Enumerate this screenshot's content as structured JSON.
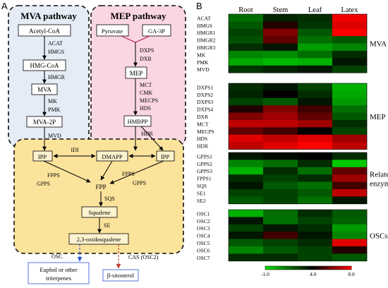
{
  "panels": {
    "a": "A",
    "b": "B"
  },
  "pathway": {
    "mva_title": "MVA pathway",
    "mep_title": "MEP pathway",
    "nodes": {
      "acetyl_coa": "Acetyl-CoA",
      "hmg_coa": "HMG-CoA",
      "mva": "MVA",
      "mva_2p": "MVA-2P",
      "pyruvate": "Pyruvate",
      "ga3p": "GA-3P",
      "mep": "MEP",
      "hmbpp": "HMBPP",
      "ipp_left": "IPP",
      "dmapp": "DMAPP",
      "ipp_right": "IPP",
      "fpp": "FPP",
      "squalene": "Squalene",
      "oxidosqualene": "2,3-oxidosqualene",
      "euphol": "Euphol or other triterpenes",
      "euphol_line1": "Euphol or other",
      "euphol_line2": "triterpenes",
      "sitosterol": "β-sitosterol"
    },
    "enzymes": {
      "acat": "ACAT",
      "hmgs": "HMGS",
      "hmgr": "HMGR",
      "mk": "MK",
      "pmk": "PMK",
      "mvd": "MVD",
      "dxps": "DXPS",
      "dxr": "DXR",
      "mct": "MCT",
      "cmk": "CMK",
      "mecps": "MECPS",
      "hds": "HDS",
      "hdr": "HDR",
      "idi": "IDI",
      "fpps_left": "FPPS",
      "gpps_left": "GPPS",
      "fpps_right": "FPPS",
      "gpps_right": "GPPS",
      "sqs": "SQS",
      "se": "SE",
      "osc": "OSC",
      "cas": "CAS (OSC2)"
    }
  },
  "heatmap": {
    "columns": [
      "Root",
      "Stem",
      "Leaf",
      "Latex"
    ],
    "groups": [
      {
        "name": "MVA",
        "rows": [
          "ACAT",
          "HMGS",
          "HMGR1",
          "HMGR2",
          "HMGR3",
          "MK",
          "PMK",
          "MVD"
        ]
      },
      {
        "name": "MEP",
        "rows": [
          "DXPS1",
          "DXPS2",
          "DXPS3",
          "DXPS4",
          "DXR",
          "MCT",
          "MECPS",
          "HDS",
          "HDR"
        ]
      },
      {
        "name_lines": [
          "Related",
          "enzymes"
        ],
        "rows": [
          "GPPS1",
          "GPPS2",
          "GPPS3",
          "FPPS1",
          "SQS",
          "SE1",
          "SE2"
        ]
      },
      {
        "name": "OSCs",
        "rows": [
          "OSC1",
          "OSC2",
          "OSC3",
          "OSC4",
          "OSC5",
          "OSC6",
          "OSC7"
        ]
      }
    ],
    "values": [
      [
        [
          1.5,
          3.2,
          3.0,
          7.8
        ],
        [
          2.0,
          4.5,
          2.8,
          7.5
        ],
        [
          2.5,
          6.0,
          2.0,
          8.0
        ],
        [
          2.2,
          5.5,
          1.5,
          2.0
        ],
        [
          3.0,
          3.5,
          0.5,
          1.0
        ],
        [
          1.0,
          0.8,
          1.5,
          3.0
        ],
        [
          0.2,
          -0.2,
          0.0,
          3.5
        ],
        [
          2.8,
          3.2,
          3.5,
          2.5
        ]
      ],
      [
        [
          3.0,
          3.5,
          2.5,
          0.0
        ],
        [
          3.2,
          4.0,
          3.0,
          0.2
        ],
        [
          2.5,
          2.0,
          3.5,
          0.5
        ],
        [
          4.5,
          6.0,
          5.0,
          1.5
        ],
        [
          6.0,
          6.5,
          5.5,
          2.0
        ],
        [
          7.0,
          7.0,
          6.5,
          3.0
        ],
        [
          5.5,
          5.0,
          4.0,
          2.5
        ],
        [
          7.5,
          7.0,
          7.5,
          6.5
        ],
        [
          7.0,
          7.5,
          8.0,
          7.0
        ]
      ],
      [
        [
          3.5,
          3.8,
          4.0,
          3.0
        ],
        [
          1.0,
          1.5,
          3.0,
          -0.5
        ],
        [
          0.0,
          3.0,
          1.5,
          5.5
        ],
        [
          3.0,
          2.5,
          3.0,
          6.5
        ],
        [
          3.5,
          2.0,
          1.5,
          5.0
        ],
        [
          2.5,
          2.5,
          2.0,
          7.0
        ],
        [
          2.0,
          2.5,
          1.5,
          3.5
        ]
      ],
      [
        [
          0.0,
          1.5,
          3.0,
          2.0
        ],
        [
          3.5,
          1.5,
          2.5,
          1.8
        ],
        [
          2.5,
          3.5,
          3.0,
          0.5
        ],
        [
          3.5,
          5.0,
          3.5,
          1.0
        ],
        [
          2.0,
          2.5,
          3.0,
          7.5
        ],
        [
          1.0,
          2.0,
          2.5,
          4.5
        ],
        [
          3.0,
          3.0,
          2.5,
          2.0
        ]
      ]
    ],
    "scale": {
      "min": -1.0,
      "mid": 4.0,
      "max": 8.0,
      "labels": [
        "-1.0",
        "4.0",
        "8.0"
      ],
      "colors": {
        "low": "#00dd00",
        "mid": "#000000",
        "high": "#ff0000"
      }
    }
  },
  "colors": {
    "mva_bg": "#e5ecf6",
    "mep_bg": "#fad6e2",
    "core_bg": "#fbe39c",
    "core_box": "#fdf2cf",
    "osc_arrow": "#2e55d8",
    "cas_arrow": "#c0392b",
    "mep_line": "#c01a5a"
  }
}
